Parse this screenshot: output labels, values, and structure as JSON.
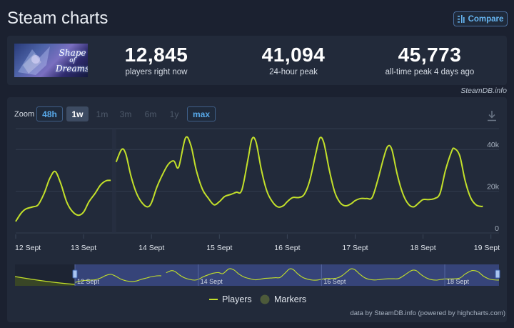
{
  "header": {
    "title": "Steam charts",
    "compare_label": "Compare"
  },
  "game": {
    "logo_text_1": "Shape",
    "logo_text_2": "of",
    "logo_text_3": "Dreams"
  },
  "stats": [
    {
      "value": "12,845",
      "label": "players right now"
    },
    {
      "value": "41,094",
      "label": "24-hour peak"
    },
    {
      "value": "45,773",
      "label": "all-time peak 4 days ago"
    }
  ],
  "credit_top": "SteamDB.info",
  "zoom": {
    "label": "Zoom",
    "buttons": [
      {
        "label": "48h",
        "state": "outline"
      },
      {
        "label": "1w",
        "state": "active"
      },
      {
        "label": "1m",
        "state": "dim"
      },
      {
        "label": "3m",
        "state": "dim"
      },
      {
        "label": "6m",
        "state": "dim"
      },
      {
        "label": "1y",
        "state": "dim"
      },
      {
        "label": "max",
        "state": "outline"
      }
    ]
  },
  "legend": {
    "players": "Players",
    "markers": "Markers"
  },
  "footer_credit": "data by SteamDB.info (powered by highcharts.com)",
  "colors": {
    "line": "#c3e02a",
    "marker": "#4d5a3a",
    "navigator_mask": "#3b4a86"
  },
  "chart_data": {
    "type": "line",
    "series": [
      {
        "name": "Players",
        "points": [
          [
            0.0,
            5500
          ],
          [
            0.08,
            9500
          ],
          [
            0.15,
            11500
          ],
          [
            0.25,
            12500
          ],
          [
            0.33,
            13500
          ],
          [
            0.42,
            19000
          ],
          [
            0.5,
            26000
          ],
          [
            0.58,
            29500
          ],
          [
            0.66,
            24000
          ],
          [
            0.75,
            15000
          ],
          [
            0.83,
            10500
          ],
          [
            0.92,
            8500
          ],
          [
            1.0,
            10000
          ],
          [
            1.08,
            15000
          ],
          [
            1.17,
            19000
          ],
          [
            1.25,
            23000
          ],
          [
            1.33,
            25000
          ],
          [
            1.4,
            25200
          ],
          [
            1.48,
            34000
          ],
          [
            1.56,
            40000
          ],
          [
            1.62,
            38000
          ],
          [
            1.7,
            27000
          ],
          [
            1.78,
            19000
          ],
          [
            1.86,
            14500
          ],
          [
            1.94,
            12500
          ],
          [
            2.0,
            14500
          ],
          [
            2.08,
            22000
          ],
          [
            2.17,
            28500
          ],
          [
            2.25,
            33000
          ],
          [
            2.33,
            34500
          ],
          [
            2.4,
            31500
          ],
          [
            2.5,
            45500
          ],
          [
            2.58,
            42000
          ],
          [
            2.66,
            30000
          ],
          [
            2.75,
            21000
          ],
          [
            2.83,
            17000
          ],
          [
            2.92,
            13500
          ],
          [
            3.0,
            15000
          ],
          [
            3.08,
            17500
          ],
          [
            3.17,
            18500
          ],
          [
            3.25,
            19500
          ],
          [
            3.33,
            20500
          ],
          [
            3.42,
            35000
          ],
          [
            3.48,
            45000
          ],
          [
            3.54,
            43500
          ],
          [
            3.62,
            30000
          ],
          [
            3.7,
            20000
          ],
          [
            3.78,
            15000
          ],
          [
            3.86,
            12500
          ],
          [
            3.94,
            13000
          ],
          [
            4.0,
            15000
          ],
          [
            4.08,
            17000
          ],
          [
            4.17,
            17000
          ],
          [
            4.25,
            18500
          ],
          [
            4.33,
            25000
          ],
          [
            4.42,
            38000
          ],
          [
            4.48,
            45500
          ],
          [
            4.54,
            43000
          ],
          [
            4.62,
            30000
          ],
          [
            4.7,
            19500
          ],
          [
            4.78,
            14500
          ],
          [
            4.86,
            13000
          ],
          [
            4.94,
            14000
          ],
          [
            5.0,
            15500
          ],
          [
            5.08,
            16500
          ],
          [
            5.17,
            16500
          ],
          [
            5.25,
            17000
          ],
          [
            5.33,
            25000
          ],
          [
            5.42,
            36000
          ],
          [
            5.48,
            41500
          ],
          [
            5.54,
            40000
          ],
          [
            5.62,
            28000
          ],
          [
            5.7,
            19000
          ],
          [
            5.78,
            14000
          ],
          [
            5.86,
            12500
          ],
          [
            5.94,
            14500
          ],
          [
            6.0,
            16000
          ],
          [
            6.08,
            16000
          ],
          [
            6.17,
            16500
          ],
          [
            6.25,
            19000
          ],
          [
            6.33,
            30000
          ],
          [
            6.42,
            39000
          ],
          [
            6.46,
            40500
          ],
          [
            6.54,
            37000
          ],
          [
            6.62,
            25000
          ],
          [
            6.7,
            17000
          ],
          [
            6.78,
            13500
          ],
          [
            6.86,
            12700
          ],
          [
            6.88,
            12845
          ]
        ]
      }
    ],
    "x_tick_labels": [
      "12 Sept",
      "13 Sept",
      "14 Sept",
      "15 Sept",
      "16 Sept",
      "17 Sept",
      "18 Sept",
      "19 Sept"
    ],
    "y_tick_labels": [
      "0",
      "20k",
      "40k"
    ],
    "ylim": [
      0,
      50000
    ],
    "xlim": [
      0,
      6.88
    ],
    "grid": true,
    "navigator_labels": [
      "12 Sept",
      "14 Sept",
      "16 Sept",
      "18 Sept"
    ]
  }
}
